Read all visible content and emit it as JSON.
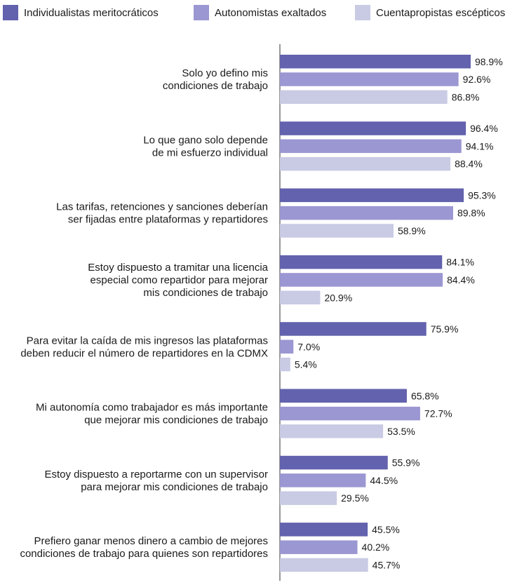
{
  "chart_data": {
    "type": "bar",
    "orientation": "horizontal",
    "categories": [
      [
        "Solo yo defino mis",
        "condiciones de trabajo"
      ],
      [
        "Lo que gano solo depende",
        "de mi esfuerzo individual"
      ],
      [
        "Las tarifas, retenciones y sanciones deberían",
        "ser fijadas entre plataformas y repartidores"
      ],
      [
        "Estoy dispuesto a tramitar una licencia",
        "especial como repartidor para mejorar",
        "mis condiciones de trabajo"
      ],
      [
        "Para evitar la caída de mis ingresos las plataformas",
        "deben reducir el número de repartidores en la CDMX"
      ],
      [
        "Mi autonomía como trabajador es más importante",
        "que mejorar mis condiciones de trabajo"
      ],
      [
        "Estoy dispuesto a reportarme con un supervisor",
        "para mejorar mis condiciones de trabajo"
      ],
      [
        "Prefiero ganar menos dinero a cambio de mejores",
        "condiciones de trabajo para quienes son repartidores"
      ]
    ],
    "series": [
      {
        "name": "Individualistas meritocráticos",
        "color": "#6262ae",
        "values": [
          98.9,
          96.4,
          95.3,
          84.1,
          75.9,
          65.8,
          55.9,
          45.5
        ],
        "labels": [
          "98.9%",
          "96.4%",
          "95.3%",
          "84.1%",
          "75.9%",
          "65.8%",
          "55.9%",
          "45.5%"
        ]
      },
      {
        "name": "Autonomistas exaltados",
        "color": "#9b97d2",
        "values": [
          92.6,
          94.1,
          89.8,
          84.4,
          7.0,
          72.7,
          44.5,
          40.2
        ],
        "labels": [
          "92.6%",
          "94.1%",
          "89.8%",
          "84.4%",
          "7.0%",
          "72.7%",
          "44.5%",
          "40.2%"
        ]
      },
      {
        "name": "Cuentapropistas escépticos",
        "color": "#c9cbe4",
        "values": [
          86.8,
          88.4,
          58.9,
          20.9,
          5.4,
          53.5,
          29.5,
          45.7
        ],
        "labels": [
          "86.8%",
          "88.4%",
          "58.9%",
          "20.9%",
          "5.4%",
          "53.5%",
          "29.5%",
          "45.7%"
        ]
      }
    ],
    "xlim": [
      0,
      100
    ],
    "legend_position": "top",
    "grid": false
  }
}
